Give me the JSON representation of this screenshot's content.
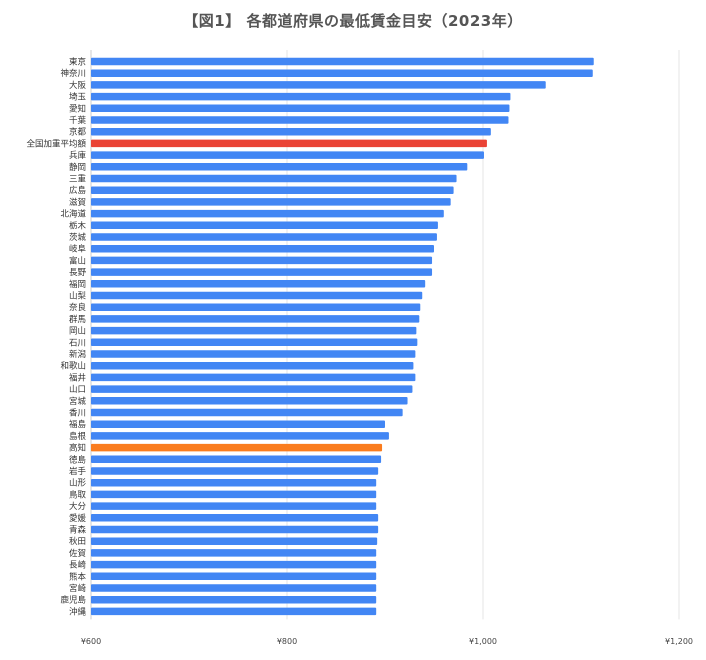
{
  "chart_data": {
    "type": "bar",
    "orientation": "horizontal",
    "title": "【図1】 各都道府県の最低賃金目安（2023年）",
    "xlim": [
      600,
      1200
    ],
    "x_ticks": [
      {
        "value": 600,
        "label": "¥600"
      },
      {
        "value": 800,
        "label": "¥800"
      },
      {
        "value": 1000,
        "label": "¥1,000"
      },
      {
        "value": 1200,
        "label": "¥1,200"
      }
    ],
    "grid": true,
    "default_color": "#4286f4",
    "bars": [
      {
        "label": "東京",
        "value": 1113
      },
      {
        "label": "神奈川",
        "value": 1112
      },
      {
        "label": "大阪",
        "value": 1064
      },
      {
        "label": "埼玉",
        "value": 1028
      },
      {
        "label": "愛知",
        "value": 1027
      },
      {
        "label": "千葉",
        "value": 1026
      },
      {
        "label": "京都",
        "value": 1008
      },
      {
        "label": "全国加重平均額",
        "value": 1004,
        "color": "#ea4335"
      },
      {
        "label": "兵庫",
        "value": 1001
      },
      {
        "label": "静岡",
        "value": 984
      },
      {
        "label": "三重",
        "value": 973
      },
      {
        "label": "広島",
        "value": 970
      },
      {
        "label": "滋賀",
        "value": 967
      },
      {
        "label": "北海道",
        "value": 960
      },
      {
        "label": "栃木",
        "value": 954
      },
      {
        "label": "茨城",
        "value": 953
      },
      {
        "label": "岐阜",
        "value": 950
      },
      {
        "label": "富山",
        "value": 948
      },
      {
        "label": "長野",
        "value": 948
      },
      {
        "label": "福岡",
        "value": 941
      },
      {
        "label": "山梨",
        "value": 938
      },
      {
        "label": "奈良",
        "value": 936
      },
      {
        "label": "群馬",
        "value": 935
      },
      {
        "label": "岡山",
        "value": 932
      },
      {
        "label": "石川",
        "value": 933
      },
      {
        "label": "新潟",
        "value": 931
      },
      {
        "label": "和歌山",
        "value": 929
      },
      {
        "label": "福井",
        "value": 931
      },
      {
        "label": "山口",
        "value": 928
      },
      {
        "label": "宮城",
        "value": 923
      },
      {
        "label": "香川",
        "value": 918
      },
      {
        "label": "福島",
        "value": 900
      },
      {
        "label": "島根",
        "value": 904
      },
      {
        "label": "高知",
        "value": 897,
        "color": "#fa7c1e"
      },
      {
        "label": "徳島",
        "value": 896
      },
      {
        "label": "岩手",
        "value": 893
      },
      {
        "label": "山形",
        "value": 891
      },
      {
        "label": "鳥取",
        "value": 891
      },
      {
        "label": "大分",
        "value": 891
      },
      {
        "label": "愛媛",
        "value": 893
      },
      {
        "label": "青森",
        "value": 893
      },
      {
        "label": "秋田",
        "value": 892
      },
      {
        "label": "佐賀",
        "value": 891
      },
      {
        "label": "長崎",
        "value": 891
      },
      {
        "label": "熊本",
        "value": 891
      },
      {
        "label": "宮崎",
        "value": 891
      },
      {
        "label": "鹿児島",
        "value": 891
      },
      {
        "label": "沖縄",
        "value": 891
      }
    ]
  }
}
